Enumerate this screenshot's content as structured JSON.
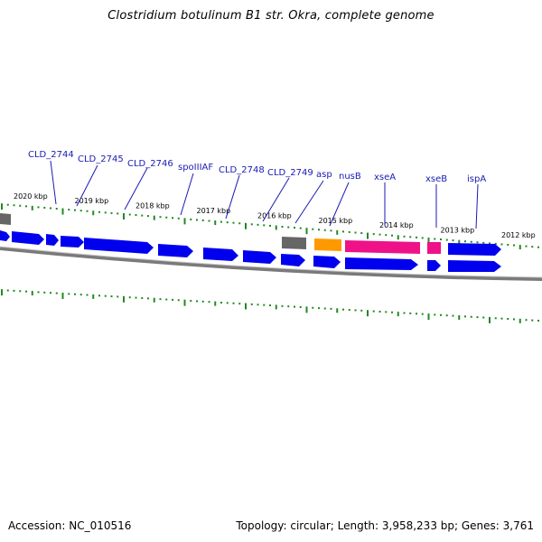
{
  "title": "Clostridium botulinum B1 str. Okra, complete genome",
  "footer": {
    "accession": "Accession: NC_010516",
    "summary": "Topology: circular; Length: 3,958,233 bp; Genes: 3,761"
  },
  "colors": {
    "cds": "#0000ee",
    "other": "#606060",
    "trna": "#ff9900",
    "highlight": "#ee1188",
    "tick": "#228822",
    "backbone": "#808080",
    "label": "#1a1ab4"
  },
  "ticks": [
    {
      "label": "2020 kbp",
      "kbp": 2020
    },
    {
      "label": "2019 kbp",
      "kbp": 2019
    },
    {
      "label": "2018 kbp",
      "kbp": 2018
    },
    {
      "label": "2017 kbp",
      "kbp": 2017
    },
    {
      "label": "2016 kbp",
      "kbp": 2016
    },
    {
      "label": "2015 kbp",
      "kbp": 2015
    },
    {
      "label": "2014 kbp",
      "kbp": 2014
    },
    {
      "label": "2013 kbp",
      "kbp": 2013
    },
    {
      "label": "2012 kbp",
      "kbp": 2012
    }
  ],
  "gene_labels": [
    "CLD_2744",
    "CLD_2745",
    "CLD_2746",
    "spoIIIAF",
    "CLD_2748",
    "CLD_2749",
    "asp",
    "nusB",
    "xseA",
    "xseB",
    "ispA"
  ]
}
